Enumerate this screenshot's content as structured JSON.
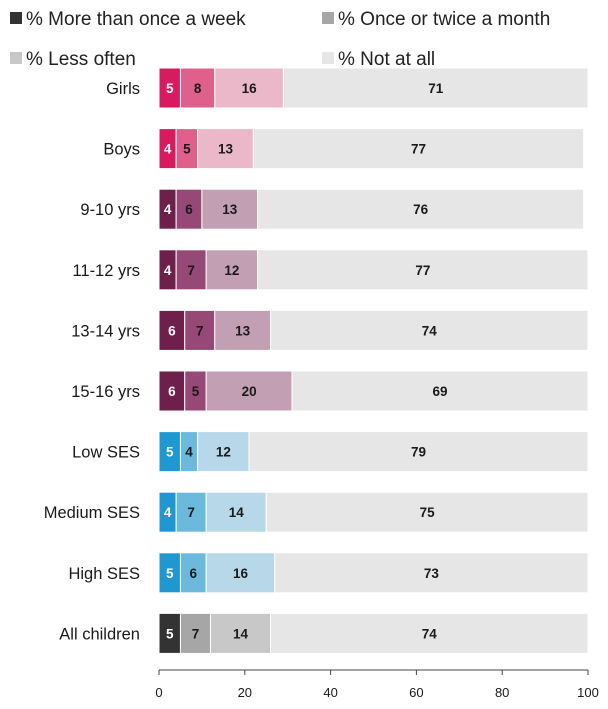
{
  "chart_data": {
    "type": "bar",
    "orientation": "horizontal",
    "stacked": true,
    "legend_position": "top",
    "grid": false,
    "xlim": [
      0,
      100
    ],
    "x_ticks": [
      0,
      20,
      40,
      60,
      80,
      100
    ],
    "categories": [
      "Girls",
      "Boys",
      "9-10 yrs",
      "11-12 yrs",
      "13-14 yrs",
      "15-16 yrs",
      "Low SES",
      "Medium SES",
      "High SES",
      "All children"
    ],
    "series": [
      {
        "name": "% More than once a week",
        "values": [
          5,
          4,
          4,
          4,
          6,
          6,
          5,
          4,
          5,
          5
        ]
      },
      {
        "name": "% Once or twice a month",
        "values": [
          8,
          5,
          6,
          7,
          7,
          5,
          4,
          7,
          6,
          7
        ]
      },
      {
        "name": "% Less often",
        "values": [
          16,
          13,
          13,
          12,
          13,
          20,
          12,
          14,
          16,
          14
        ]
      },
      {
        "name": "% Not at all",
        "values": [
          71,
          77,
          76,
          77,
          74,
          69,
          79,
          75,
          73,
          74
        ]
      }
    ],
    "legend_colors": [
      "#333333",
      "#a6a6a6",
      "#c8c8c8",
      "#e6e6e6"
    ],
    "category_groups": [
      {
        "rows": [
          0,
          1
        ],
        "colors": [
          "#d81b5e",
          "#e0608c",
          "#ebb8c9",
          "#e6e6e6"
        ]
      },
      {
        "rows": [
          2,
          3,
          4,
          5
        ],
        "colors": [
          "#6e1f4c",
          "#964876",
          "#c39fb4",
          "#e6e6e6"
        ]
      },
      {
        "rows": [
          6,
          7,
          8
        ],
        "colors": [
          "#1f98d1",
          "#6bb9dd",
          "#b6d8e9",
          "#e6e6e6"
        ]
      },
      {
        "rows": [
          9
        ],
        "colors": [
          "#333333",
          "#a6a6a6",
          "#c8c8c8",
          "#e6e6e6"
        ]
      }
    ]
  }
}
